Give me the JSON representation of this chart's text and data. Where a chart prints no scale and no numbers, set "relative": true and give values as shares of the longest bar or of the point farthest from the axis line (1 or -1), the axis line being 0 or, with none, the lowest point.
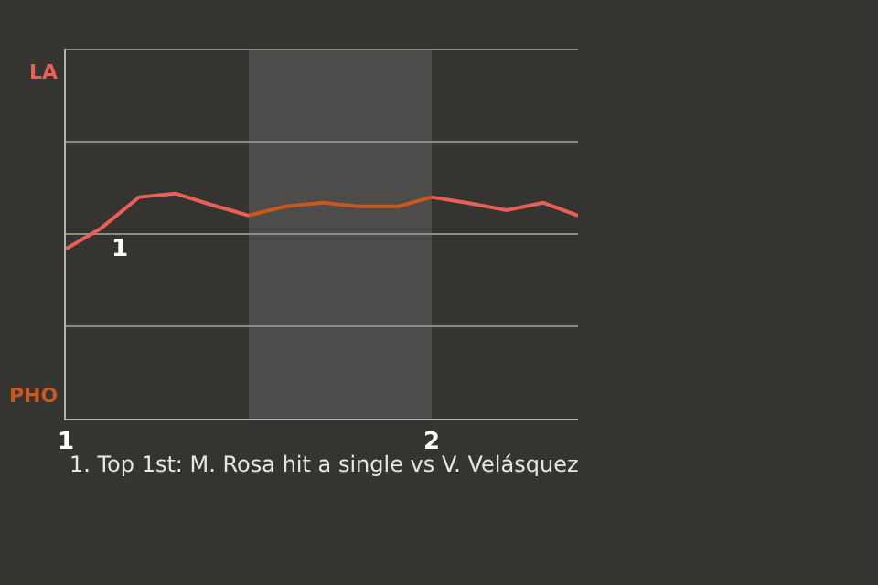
{
  "chart_data": {
    "type": "line",
    "relative": true,
    "series": [
      {
        "color": "#e8605a",
        "x": [
          1,
          1.095,
          1.2,
          1.3,
          1.395,
          1.5
        ],
        "values": [
          0.754,
          0.844,
          0.984,
          1,
          0.951,
          0.902
        ]
      },
      {
        "color": "#c8581e",
        "x": [
          1.5,
          1.6,
          1.705,
          1.745,
          1.805,
          1.91,
          2.0
        ],
        "values": [
          0.902,
          0.943,
          0.959,
          0.951,
          0.943,
          0.943,
          0.984
        ]
      },
      {
        "color": "#e8605a",
        "x": [
          2.0,
          2.095,
          2.205,
          2.305,
          2.4
        ],
        "values": [
          0.984,
          0.959,
          0.926,
          0.959,
          0.902
        ]
      }
    ],
    "xlim": [
      1,
      2.4
    ],
    "xticks": [
      1,
      2
    ],
    "bands": [
      {
        "axis": "x",
        "from": 1.5,
        "to": 2,
        "color": "#4d4c4a"
      }
    ],
    "annotations": [
      "LA",
      "PHO",
      {
        "text": "1",
        "x": 1.095,
        "y": 0.844
      },
      "1. Top 1st: M. Rosa hit a single vs V. Velásquez"
    ],
    "ref_lines": [
      {
        "axis": "y",
        "value": 0.41,
        "color": "#8a8a8a"
      },
      {
        "axis": "y",
        "value": 0.82,
        "color": "#8a8a8a"
      },
      {
        "axis": "y",
        "value": 1.23,
        "color": "#8a8a8a"
      },
      {
        "axis": "y",
        "value": 1.64,
        "color": "#8a8a8a"
      }
    ],
    "marker": "none",
    "line_style": "solid"
  }
}
